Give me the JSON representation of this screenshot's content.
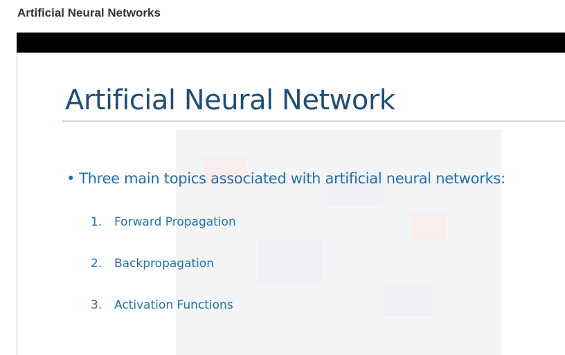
{
  "page": {
    "heading": "Artificial Neural Networks"
  },
  "slide": {
    "title": "Artificial Neural Network",
    "bullet": "Three main topics associated with artificial neural networks:",
    "topics": [
      {
        "number": "1.",
        "label": "Forward Propagation"
      },
      {
        "number": "2.",
        "label": "Backpropagation"
      },
      {
        "number": "3.",
        "label": "Activation Functions"
      }
    ]
  },
  "colors": {
    "title": "#1f4e79",
    "body_text": "#1f6fb0",
    "frame_bar": "#000000"
  }
}
